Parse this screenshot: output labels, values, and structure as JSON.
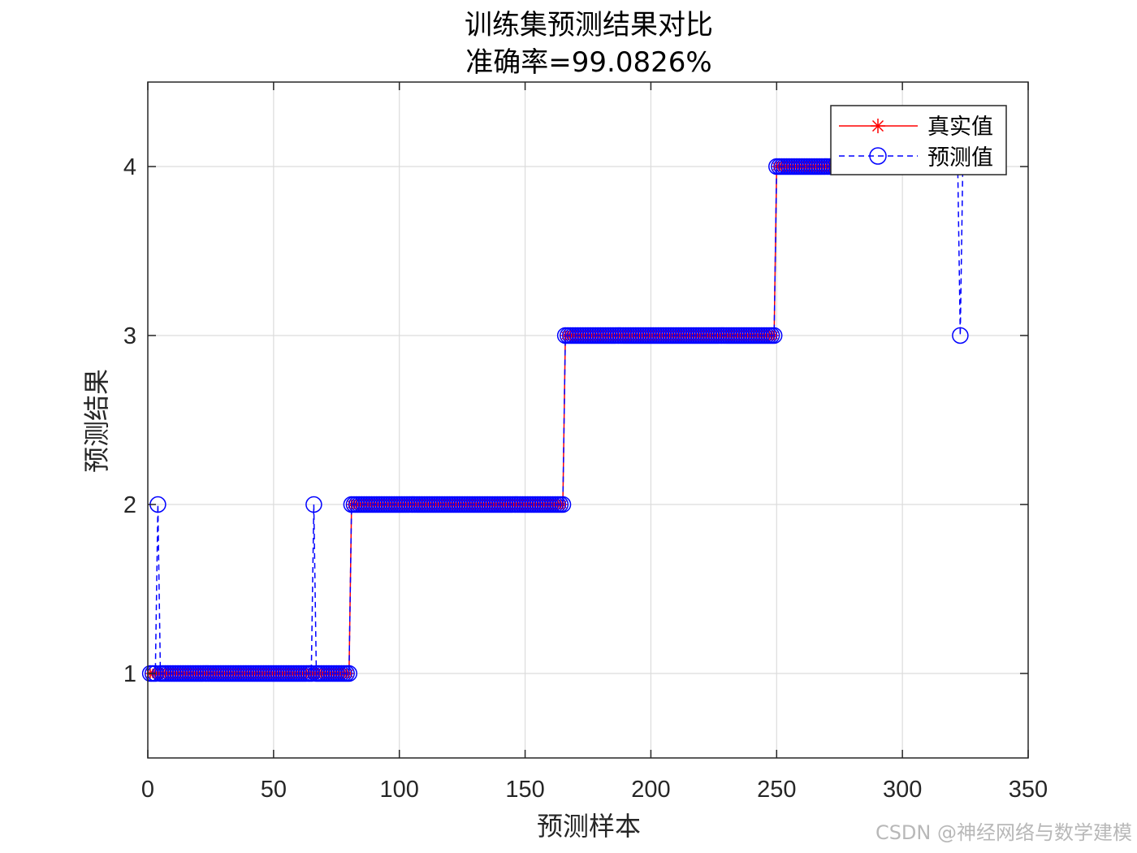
{
  "chart_data": {
    "type": "line",
    "title": "训练集预测结果对比",
    "subtitle": "准确率=99.0826%",
    "xlabel": "预测样本",
    "ylabel": "预测结果",
    "xlim": [
      0,
      350
    ],
    "ylim": [
      0.5,
      4.5
    ],
    "xticks": [
      0,
      50,
      100,
      150,
      200,
      250,
      300,
      350
    ],
    "yticks": [
      1,
      2,
      3,
      4
    ],
    "xtick_labels": [
      "0",
      "50",
      "100",
      "150",
      "200",
      "250",
      "300",
      "350"
    ],
    "ytick_labels": [
      "1",
      "2",
      "3",
      "4"
    ],
    "grid": true,
    "legend_position": "top-right",
    "n_samples": 327,
    "true_segments": [
      {
        "from": 1,
        "to": 80,
        "value": 1
      },
      {
        "from": 81,
        "to": 165,
        "value": 2
      },
      {
        "from": 166,
        "to": 249,
        "value": 3
      },
      {
        "from": 250,
        "to": 327,
        "value": 4
      }
    ],
    "prediction_errors": [
      {
        "x": 4,
        "value": 2
      },
      {
        "x": 66,
        "value": 2
      },
      {
        "x": 323,
        "value": 3
      }
    ],
    "series": [
      {
        "name": "真实值",
        "color": "#ff0000",
        "line": "solid",
        "marker": "asterisk"
      },
      {
        "name": "预测值",
        "color": "#0000ff",
        "line": "dashed",
        "marker": "circle"
      }
    ]
  },
  "watermark": "CSDN @神经网络与数学建模"
}
